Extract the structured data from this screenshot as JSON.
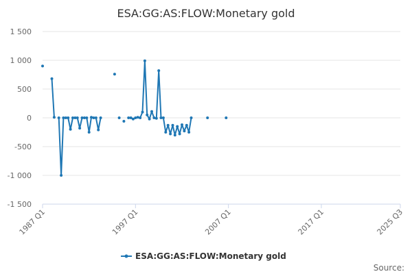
{
  "chart_data": {
    "type": "line",
    "title": "ESA:GG:AS:FLOW:Monetary gold",
    "xlabel": "",
    "ylabel": "",
    "ylim": [
      -1500,
      1500
    ],
    "y_ticks": [
      {
        "value": 1500,
        "label": "1 500"
      },
      {
        "value": 1000,
        "label": "1 000"
      },
      {
        "value": 500,
        "label": "500"
      },
      {
        "value": 0,
        "label": "0"
      },
      {
        "value": -500,
        "label": "-500"
      },
      {
        "value": -1000,
        "label": "-1 000"
      },
      {
        "value": -1500,
        "label": "-1 500"
      }
    ],
    "x_ticks": [
      {
        "value": 1987.0,
        "label": "1987 Q1"
      },
      {
        "value": 1997.0,
        "label": "1997 Q1"
      },
      {
        "value": 2007.0,
        "label": "2007 Q1"
      },
      {
        "value": 2017.0,
        "label": "2017 Q1"
      },
      {
        "value": 2025.5,
        "label": "2025 Q3"
      }
    ],
    "xlim": [
      1987.0,
      2025.5
    ],
    "grid": true,
    "legend_position": "bottom",
    "color": "#1f77b4",
    "series": [
      {
        "name": "ESA:GG:AS:FLOW:Monetary gold",
        "points": [
          [
            1987.0,
            900
          ],
          null,
          [
            1988.0,
            680
          ],
          [
            1988.25,
            10
          ],
          null,
          [
            1988.75,
            0
          ],
          [
            1989.0,
            -1000
          ],
          [
            1989.25,
            0
          ],
          [
            1989.5,
            0
          ],
          [
            1989.75,
            0
          ],
          [
            1990.0,
            -200
          ],
          [
            1990.25,
            0
          ],
          [
            1990.5,
            0
          ],
          [
            1990.75,
            0
          ],
          [
            1991.0,
            -180
          ],
          [
            1991.25,
            0
          ],
          [
            1991.5,
            0
          ],
          [
            1991.75,
            0
          ],
          [
            1992.0,
            -250
          ],
          [
            1992.25,
            10
          ],
          [
            1992.5,
            0
          ],
          [
            1992.75,
            0
          ],
          [
            1993.0,
            -210
          ],
          [
            1993.25,
            0
          ],
          null,
          [
            1994.75,
            760
          ],
          null,
          [
            1995.25,
            0
          ],
          null,
          [
            1995.75,
            -60
          ],
          null,
          [
            1996.25,
            0
          ],
          [
            1996.5,
            0
          ],
          [
            1996.75,
            -20
          ],
          [
            1997.0,
            0
          ],
          [
            1997.25,
            10
          ],
          [
            1997.5,
            0
          ],
          [
            1997.75,
            100
          ],
          [
            1998.0,
            990
          ],
          [
            1998.25,
            50
          ],
          [
            1998.5,
            -20
          ],
          [
            1998.75,
            110
          ],
          [
            1999.0,
            0
          ],
          [
            1999.25,
            -10
          ],
          [
            1999.5,
            820
          ],
          [
            1999.75,
            0
          ],
          [
            2000.0,
            0
          ],
          [
            2000.25,
            -250
          ],
          [
            2000.5,
            -130
          ],
          [
            2000.75,
            -280
          ],
          [
            2001.0,
            -130
          ],
          [
            2001.25,
            -300
          ],
          [
            2001.5,
            -150
          ],
          [
            2001.75,
            -280
          ],
          [
            2002.0,
            -120
          ],
          [
            2002.25,
            -230
          ],
          [
            2002.5,
            -130
          ],
          [
            2002.75,
            -250
          ],
          [
            2003.0,
            0
          ],
          null,
          [
            2004.75,
            0
          ],
          null,
          [
            2006.75,
            0
          ]
        ]
      }
    ]
  },
  "footer": {
    "source_label": "Source:"
  }
}
